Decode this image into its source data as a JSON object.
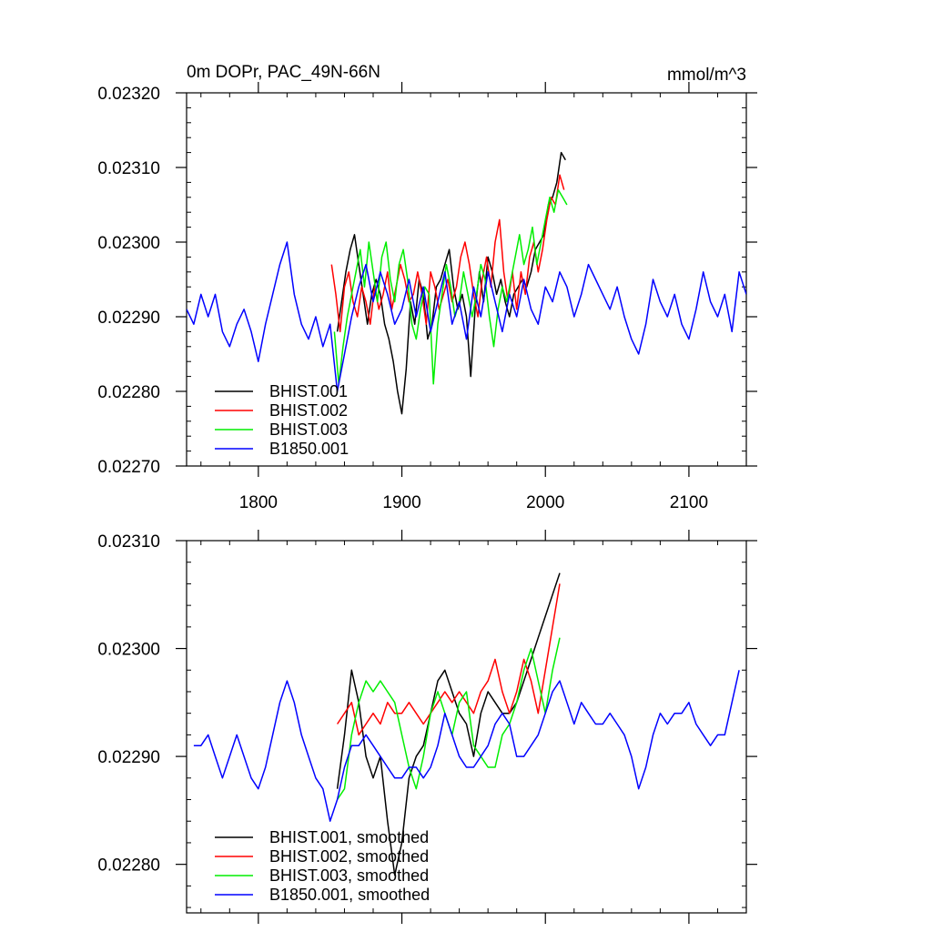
{
  "chart_data": [
    {
      "type": "line",
      "title_left": "0m DOPr, PAC_49N-66N",
      "title_right": "mmol/m^3",
      "xlabel": "",
      "ylabel": "",
      "xlim": [
        1750,
        2140
      ],
      "ylim": [
        0.0227,
        0.0232
      ],
      "xticks": [
        1800,
        1900,
        2000,
        2100
      ],
      "xtick_labels": [
        "1800",
        "1900",
        "2000",
        "2100"
      ],
      "yticks": [
        0.0227,
        0.0228,
        0.0229,
        0.023,
        0.0231,
        0.0232
      ],
      "ytick_labels": [
        "0.02270",
        "0.02280",
        "0.02290",
        "0.02300",
        "0.02310",
        "0.02320"
      ],
      "legend_position": "bottom-left",
      "series": [
        {
          "name": "BHIST.001",
          "color": "#000000",
          "x": [
            1855,
            1858,
            1861,
            1864,
            1867,
            1870,
            1873,
            1876,
            1879,
            1882,
            1885,
            1888,
            1891,
            1894,
            1897,
            1900,
            1903,
            1906,
            1909,
            1912,
            1915,
            1918,
            1921,
            1924,
            1927,
            1930,
            1933,
            1936,
            1939,
            1942,
            1945,
            1948,
            1951,
            1954,
            1957,
            1960,
            1963,
            1966,
            1969,
            1972,
            1975,
            1978,
            1981,
            1984,
            1987,
            1990,
            1993,
            1996,
            1999,
            2002,
            2005,
            2008,
            2011,
            2014
          ],
          "y": [
            0.02288,
            0.02292,
            0.02296,
            0.02299,
            0.02301,
            0.02297,
            0.02293,
            0.02289,
            0.02293,
            0.02295,
            0.02293,
            0.02289,
            0.02287,
            0.02284,
            0.0228,
            0.02277,
            0.02283,
            0.02292,
            0.02289,
            0.02295,
            0.02293,
            0.02287,
            0.02289,
            0.02294,
            0.02295,
            0.02297,
            0.02299,
            0.02294,
            0.02291,
            0.02293,
            0.0229,
            0.02282,
            0.02291,
            0.02296,
            0.02292,
            0.02298,
            0.02296,
            0.02293,
            0.02295,
            0.02292,
            0.0229,
            0.02293,
            0.02294,
            0.02295,
            0.02294,
            0.02296,
            0.02299,
            0.023,
            0.02301,
            0.02305,
            0.02306,
            0.02308,
            0.02312,
            0.02311
          ]
        },
        {
          "name": "BHIST.002",
          "color": "#ff0000",
          "x": [
            1851,
            1854,
            1857,
            1860,
            1863,
            1866,
            1869,
            1872,
            1875,
            1878,
            1881,
            1884,
            1887,
            1890,
            1893,
            1896,
            1899,
            1902,
            1905,
            1908,
            1911,
            1914,
            1917,
            1920,
            1923,
            1926,
            1929,
            1932,
            1935,
            1938,
            1941,
            1944,
            1947,
            1950,
            1953,
            1956,
            1959,
            1962,
            1965,
            1968,
            1971,
            1974,
            1977,
            1980,
            1983,
            1986,
            1989,
            1992,
            1995,
            1998,
            2001,
            2004,
            2007,
            2010,
            2013
          ],
          "y": [
            0.02297,
            0.02293,
            0.02288,
            0.02294,
            0.02296,
            0.02292,
            0.0229,
            0.02294,
            0.02292,
            0.02289,
            0.02294,
            0.02291,
            0.02293,
            0.02296,
            0.02291,
            0.02294,
            0.02297,
            0.02295,
            0.02292,
            0.02293,
            0.02296,
            0.02293,
            0.02289,
            0.02296,
            0.02294,
            0.02291,
            0.02293,
            0.02295,
            0.02292,
            0.02294,
            0.02298,
            0.023,
            0.02297,
            0.02293,
            0.0229,
            0.02295,
            0.02298,
            0.02294,
            0.023,
            0.02303,
            0.02296,
            0.02292,
            0.02296,
            0.02291,
            0.02296,
            0.02293,
            0.02298,
            0.023,
            0.02296,
            0.02299,
            0.02303,
            0.02306,
            0.02305,
            0.02309,
            0.02307
          ]
        },
        {
          "name": "BHIST.003",
          "color": "#00ee00",
          "x": [
            1853,
            1856,
            1859,
            1862,
            1865,
            1868,
            1871,
            1874,
            1877,
            1880,
            1883,
            1886,
            1889,
            1892,
            1895,
            1898,
            1901,
            1904,
            1907,
            1910,
            1913,
            1916,
            1919,
            1922,
            1925,
            1928,
            1931,
            1934,
            1937,
            1940,
            1943,
            1946,
            1949,
            1952,
            1955,
            1958,
            1961,
            1964,
            1967,
            1970,
            1973,
            1976,
            1979,
            1982,
            1985,
            1988,
            1991,
            1994,
            1997,
            2000,
            2003,
            2006,
            2009,
            2012,
            2015
          ],
          "y": [
            0.02288,
            0.02281,
            0.02286,
            0.0229,
            0.02293,
            0.02296,
            0.02299,
            0.02294,
            0.023,
            0.02296,
            0.02292,
            0.02298,
            0.023,
            0.02295,
            0.02292,
            0.02297,
            0.02299,
            0.02295,
            0.02289,
            0.02287,
            0.02291,
            0.02294,
            0.02293,
            0.02281,
            0.02289,
            0.02293,
            0.02297,
            0.02294,
            0.0229,
            0.02292,
            0.02296,
            0.02293,
            0.0229,
            0.02293,
            0.02297,
            0.02295,
            0.0229,
            0.02286,
            0.02291,
            0.02294,
            0.02292,
            0.02295,
            0.02298,
            0.02301,
            0.02297,
            0.02299,
            0.02302,
            0.02297,
            0.023,
            0.02303,
            0.02306,
            0.02304,
            0.02307,
            0.02306,
            0.02305
          ]
        },
        {
          "name": "B1850.001",
          "color": "#0000ff",
          "x": [
            1750,
            1755,
            1760,
            1765,
            1770,
            1775,
            1780,
            1785,
            1790,
            1795,
            1800,
            1805,
            1810,
            1815,
            1820,
            1825,
            1830,
            1835,
            1840,
            1845,
            1850,
            1855,
            1860,
            1865,
            1870,
            1875,
            1880,
            1885,
            1890,
            1895,
            1900,
            1905,
            1910,
            1915,
            1920,
            1925,
            1930,
            1935,
            1940,
            1945,
            1950,
            1955,
            1960,
            1965,
            1970,
            1975,
            1980,
            1985,
            1990,
            1995,
            2000,
            2005,
            2010,
            2015,
            2020,
            2025,
            2030,
            2035,
            2040,
            2045,
            2050,
            2055,
            2060,
            2065,
            2070,
            2075,
            2080,
            2085,
            2090,
            2095,
            2100,
            2105,
            2110,
            2115,
            2120,
            2125,
            2130,
            2135,
            2140
          ],
          "y": [
            0.02291,
            0.02289,
            0.02293,
            0.0229,
            0.02293,
            0.02288,
            0.02286,
            0.02289,
            0.02291,
            0.02288,
            0.02284,
            0.02289,
            0.02293,
            0.02297,
            0.023,
            0.02293,
            0.02289,
            0.02287,
            0.0229,
            0.02286,
            0.02289,
            0.0228,
            0.02285,
            0.0229,
            0.02294,
            0.02297,
            0.02292,
            0.02296,
            0.02293,
            0.02289,
            0.02291,
            0.02295,
            0.0229,
            0.02294,
            0.02288,
            0.02292,
            0.02296,
            0.02289,
            0.02292,
            0.02287,
            0.02294,
            0.0229,
            0.02296,
            0.02292,
            0.02288,
            0.02293,
            0.0229,
            0.02295,
            0.02291,
            0.02289,
            0.02294,
            0.02292,
            0.02296,
            0.02294,
            0.0229,
            0.02293,
            0.02297,
            0.02295,
            0.02293,
            0.02291,
            0.02294,
            0.0229,
            0.02287,
            0.02285,
            0.02289,
            0.02295,
            0.02292,
            0.0229,
            0.02293,
            0.02289,
            0.02287,
            0.02291,
            0.02296,
            0.02292,
            0.0229,
            0.02293,
            0.02288,
            0.02296,
            0.02293
          ]
        }
      ]
    },
    {
      "type": "line",
      "title_left": "",
      "title_right": "",
      "xlabel": "",
      "ylabel": "",
      "xlim": [
        1750,
        2140
      ],
      "ylim": [
        0.022755,
        0.0231
      ],
      "xticks": [
        1800,
        1900,
        2000,
        2100
      ],
      "xtick_labels": [],
      "yticks": [
        0.0228,
        0.0229,
        0.023,
        0.0231
      ],
      "ytick_labels": [
        "0.02280",
        "0.02290",
        "0.02300",
        "0.02310"
      ],
      "legend_position": "bottom-left",
      "series": [
        {
          "name": "BHIST.001, smoothed",
          "color": "#000000",
          "x": [
            1855,
            1860,
            1865,
            1870,
            1875,
            1880,
            1885,
            1890,
            1895,
            1900,
            1905,
            1910,
            1915,
            1920,
            1925,
            1930,
            1935,
            1940,
            1945,
            1950,
            1955,
            1960,
            1965,
            1970,
            1975,
            1980,
            1985,
            1990,
            1995,
            2000,
            2005,
            2010
          ],
          "y": [
            0.02287,
            0.02292,
            0.02298,
            0.02295,
            0.0229,
            0.02288,
            0.0229,
            0.02284,
            0.02279,
            0.02282,
            0.02288,
            0.0229,
            0.02291,
            0.02294,
            0.02297,
            0.02298,
            0.02296,
            0.02294,
            0.02293,
            0.0229,
            0.02294,
            0.02296,
            0.02295,
            0.02294,
            0.02294,
            0.02295,
            0.02297,
            0.02299,
            0.02301,
            0.02303,
            0.02305,
            0.02307
          ]
        },
        {
          "name": "BHIST.002, smoothed",
          "color": "#ff0000",
          "x": [
            1855,
            1860,
            1865,
            1870,
            1875,
            1880,
            1885,
            1890,
            1895,
            1900,
            1905,
            1910,
            1915,
            1920,
            1925,
            1930,
            1935,
            1940,
            1945,
            1950,
            1955,
            1960,
            1965,
            1970,
            1975,
            1980,
            1985,
            1990,
            1995,
            2000,
            2005,
            2010
          ],
          "y": [
            0.02293,
            0.02294,
            0.02295,
            0.02292,
            0.02293,
            0.02294,
            0.02293,
            0.02295,
            0.02294,
            0.02294,
            0.02295,
            0.02294,
            0.02293,
            0.02294,
            0.02295,
            0.02296,
            0.02295,
            0.02296,
            0.02295,
            0.02294,
            0.02296,
            0.02297,
            0.02299,
            0.02296,
            0.02294,
            0.02296,
            0.02299,
            0.02297,
            0.02294,
            0.02298,
            0.02302,
            0.02306
          ]
        },
        {
          "name": "BHIST.003, smoothed",
          "color": "#00ee00",
          "x": [
            1855,
            1860,
            1865,
            1870,
            1875,
            1880,
            1885,
            1890,
            1895,
            1900,
            1905,
            1910,
            1915,
            1920,
            1925,
            1930,
            1935,
            1940,
            1945,
            1950,
            1955,
            1960,
            1965,
            1970,
            1975,
            1980,
            1985,
            1990,
            1995,
            2000,
            2005,
            2010
          ],
          "y": [
            0.02286,
            0.02287,
            0.02292,
            0.02295,
            0.02297,
            0.02296,
            0.02297,
            0.02296,
            0.02295,
            0.02292,
            0.02289,
            0.02287,
            0.0229,
            0.02294,
            0.02296,
            0.02294,
            0.02292,
            0.02295,
            0.02296,
            0.02291,
            0.0229,
            0.02289,
            0.02289,
            0.02292,
            0.02293,
            0.02295,
            0.02298,
            0.023,
            0.02297,
            0.02294,
            0.02298,
            0.02301
          ]
        },
        {
          "name": "B1850.001, smoothed",
          "color": "#0000ff",
          "x": [
            1755,
            1760,
            1765,
            1770,
            1775,
            1780,
            1785,
            1790,
            1795,
            1800,
            1805,
            1810,
            1815,
            1820,
            1825,
            1830,
            1835,
            1840,
            1845,
            1850,
            1855,
            1860,
            1865,
            1870,
            1875,
            1880,
            1885,
            1890,
            1895,
            1900,
            1905,
            1910,
            1915,
            1920,
            1925,
            1930,
            1935,
            1940,
            1945,
            1950,
            1955,
            1960,
            1965,
            1970,
            1975,
            1980,
            1985,
            1990,
            1995,
            2000,
            2005,
            2010,
            2015,
            2020,
            2025,
            2030,
            2035,
            2040,
            2045,
            2050,
            2055,
            2060,
            2065,
            2070,
            2075,
            2080,
            2085,
            2090,
            2095,
            2100,
            2105,
            2110,
            2115,
            2120,
            2125,
            2130,
            2135
          ],
          "y": [
            0.02291,
            0.02291,
            0.02292,
            0.0229,
            0.02288,
            0.0229,
            0.02292,
            0.0229,
            0.02288,
            0.02287,
            0.02289,
            0.02292,
            0.02295,
            0.02297,
            0.02295,
            0.02292,
            0.0229,
            0.02288,
            0.02287,
            0.02284,
            0.02286,
            0.02289,
            0.02291,
            0.02291,
            0.02292,
            0.02291,
            0.0229,
            0.02289,
            0.02288,
            0.02288,
            0.02289,
            0.02289,
            0.02288,
            0.02289,
            0.02291,
            0.02294,
            0.02292,
            0.0229,
            0.02289,
            0.02289,
            0.0229,
            0.02291,
            0.02293,
            0.02294,
            0.02293,
            0.0229,
            0.0229,
            0.02291,
            0.02292,
            0.02294,
            0.02296,
            0.02297,
            0.02295,
            0.02293,
            0.02295,
            0.02294,
            0.02293,
            0.02293,
            0.02294,
            0.02293,
            0.02292,
            0.0229,
            0.02287,
            0.02289,
            0.02292,
            0.02294,
            0.02293,
            0.02294,
            0.02294,
            0.02295,
            0.02293,
            0.02292,
            0.02291,
            0.02292,
            0.02292,
            0.02295,
            0.02298
          ]
        }
      ]
    }
  ]
}
